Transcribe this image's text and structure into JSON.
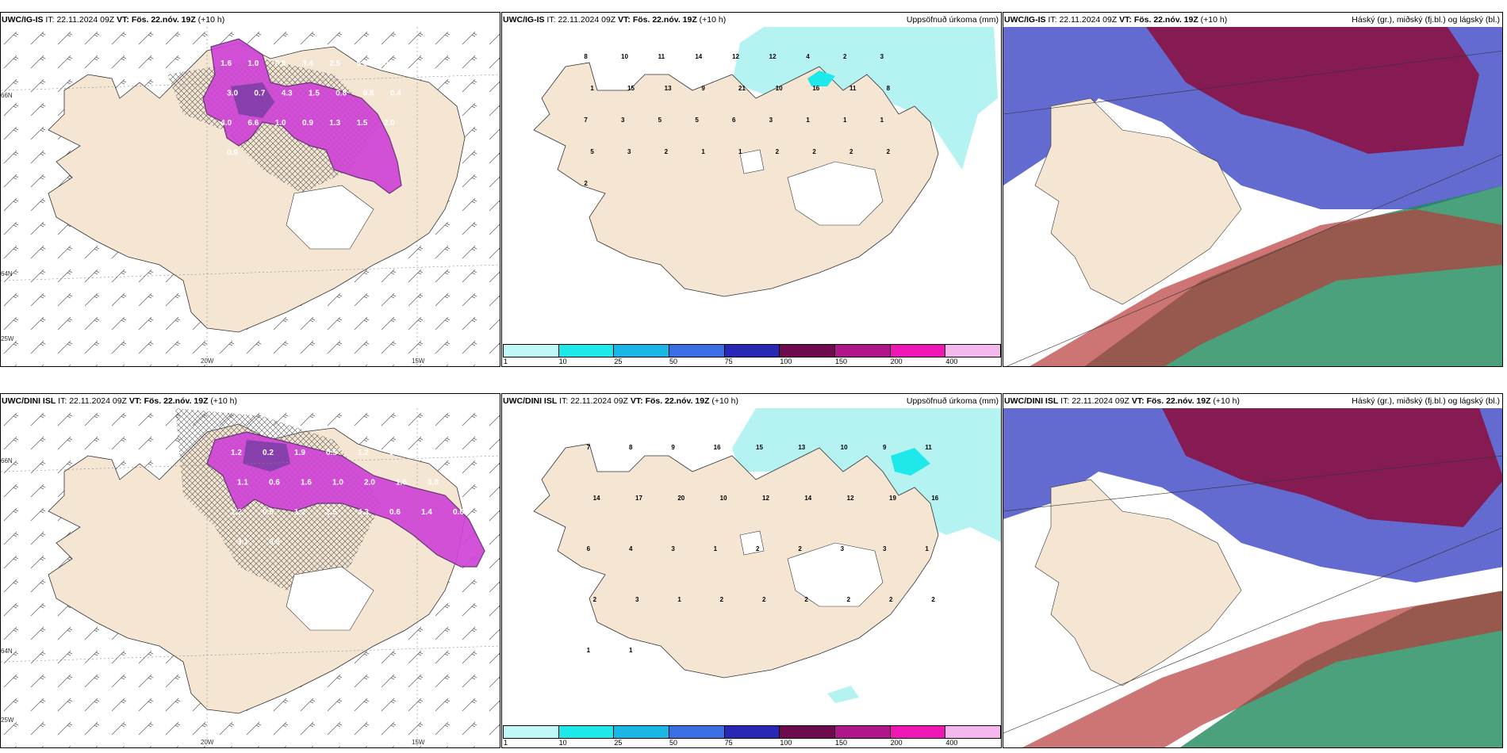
{
  "panels": [
    {
      "id": "p1",
      "model": "UWC/IG-IS",
      "it_label": "IT:",
      "it": "22.11.2024 09Z",
      "vt_label": "VT:",
      "vt": "Fös. 22.nóv. 19Z",
      "lead": "(+10 h)",
      "right_title": "",
      "labels": [
        "1.6",
        "1.0",
        "0.6",
        "3.4",
        "2.5",
        "5.6",
        "0.7",
        "3.0",
        "0.7",
        "4.3",
        "1.5",
        "0.8",
        "0.8",
        "0.4",
        "4.0",
        "6.6",
        "1.0",
        "0.9",
        "1.3",
        "1.5",
        "2.0",
        "0.9"
      ],
      "lat_labels": [
        "66N",
        "64N"
      ],
      "lon_labels": [
        "20W",
        "15W",
        "25W"
      ]
    },
    {
      "id": "p2",
      "model": "UWC/IG-IS",
      "it_label": "IT:",
      "it": "22.11.2024 09Z",
      "vt_label": "VT:",
      "vt": "Fös. 22.nóv. 19Z",
      "lead": "(+10 h)",
      "right_title": "Uppsöfnuð úrkoma (mm)",
      "labels": [
        "8",
        "10",
        "11",
        "14",
        "12",
        "12",
        "4",
        "2",
        "3",
        "1",
        "15",
        "13",
        "9",
        "21",
        "10",
        "16",
        "11",
        "8",
        "7",
        "3",
        "5",
        "5",
        "6",
        "3",
        "1",
        "1",
        "1",
        "5",
        "3",
        "2",
        "1",
        "1",
        "2",
        "2",
        "2",
        "2",
        "2"
      ]
    },
    {
      "id": "p3",
      "model": "UWC/IG-IS",
      "it_label": "IT:",
      "it": "22.11.2024 09Z",
      "vt_label": "VT:",
      "vt": "Fös. 22.nóv. 19Z",
      "lead": "(+10 h)",
      "right_title": "Háský (gr.), miðský (fj.bl.) og lágský (bl.)"
    },
    {
      "id": "p4",
      "model": "UWC/DINI ISL",
      "it_label": "IT:",
      "it": "22.11.2024 09Z",
      "vt_label": "VT:",
      "vt": "Fös. 22.nóv. 19Z",
      "lead": "(+10 h)",
      "right_title": "",
      "labels": [
        "1.2",
        "0.2",
        "1.9",
        "0.5",
        "1.2",
        "0.6",
        "1.1",
        "3.6",
        "1.1",
        "0.6",
        "1.6",
        "1.0",
        "2.0",
        "1.5",
        "3.8",
        "0.8",
        "1.2",
        "0.6",
        "1.2",
        "2.5",
        "4.3",
        "0.6",
        "1.4",
        "0.6",
        "3.1",
        "0.6"
      ],
      "lat_labels": [
        "66N",
        "64N"
      ],
      "lon_labels": [
        "20W",
        "15W",
        "25W"
      ]
    },
    {
      "id": "p5",
      "model": "UWC/DINI ISL",
      "it_label": "IT:",
      "it": "22.11.2024 09Z",
      "vt_label": "VT:",
      "vt": "Fös. 22.nóv. 19Z",
      "lead": "(+10 h)",
      "right_title": "Uppsöfnuð úrkoma (mm)",
      "labels": [
        "7",
        "8",
        "9",
        "16",
        "15",
        "13",
        "10",
        "9",
        "11",
        "14",
        "17",
        "20",
        "10",
        "12",
        "14",
        "12",
        "19",
        "16",
        "6",
        "4",
        "3",
        "1",
        "2",
        "2",
        "3",
        "3",
        "1",
        "2",
        "3",
        "1",
        "2",
        "2",
        "2",
        "2",
        "2",
        "2",
        "1",
        "1"
      ]
    },
    {
      "id": "p6",
      "model": "UWC/DINI ISL",
      "it_label": "IT:",
      "it": "22.11.2024 09Z",
      "vt_label": "VT:",
      "vt": "Fös. 22.nóv. 19Z",
      "lead": "(+10 h)",
      "right_title": "Háský (gr.), miðský (fj.bl.) og lágský (bl.)"
    }
  ],
  "colorbar": {
    "ticks": [
      "1",
      "10",
      "25",
      "50",
      "75",
      "100",
      "150",
      "200",
      "400"
    ],
    "colors": [
      "#c0f7f7",
      "#1ee8ea",
      "#1ab6e6",
      "#3b6fe6",
      "#2828b4",
      "#6e0b4e",
      "#b0168c",
      "#ee16b4",
      "#f4b8ee"
    ]
  },
  "colors": {
    "land": "#f5e6d3",
    "precip_light": "#b4f3f2",
    "purple": "#cf44d6",
    "cloud_high": "#8a1244",
    "cloud_mid": "#4850c8",
    "cloud_low": "#1e8a5a"
  }
}
